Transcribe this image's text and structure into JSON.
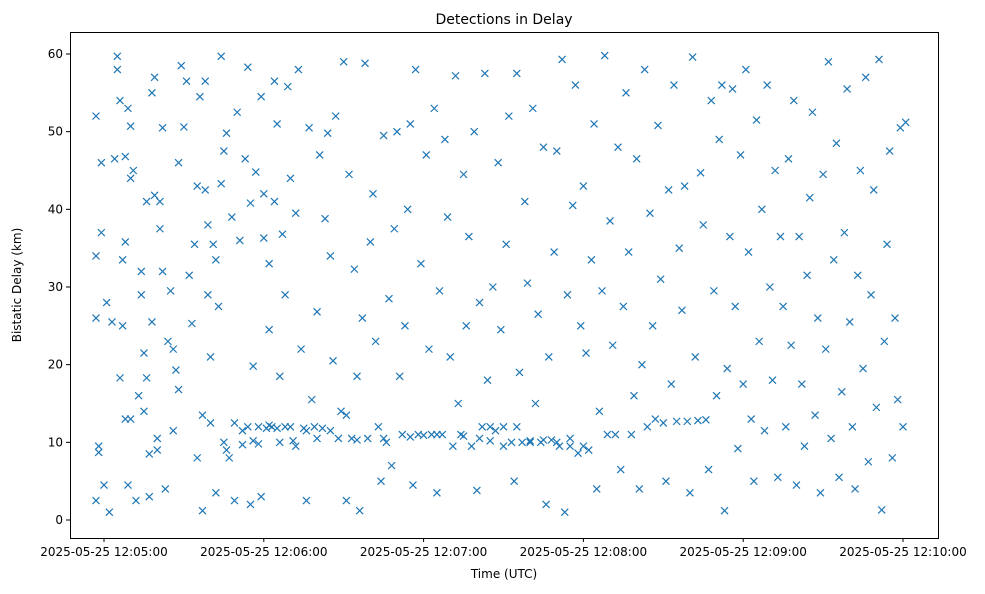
{
  "chart_data": {
    "type": "scatter",
    "title": "Detections in Delay",
    "xlabel": "Time (UTC)",
    "ylabel": "Bistatic Delay (km)",
    "x_units": "seconds after 2025-05-25 12:05:00",
    "xlim": [
      -8,
      310
    ],
    "ylim": [
      -2.5,
      62.5
    ],
    "grid": false,
    "marker": "x",
    "color": "#1f77b4",
    "x_ticks": [
      0,
      60,
      120,
      180,
      240,
      300
    ],
    "x_tick_labels": [
      "2025-05-25 12:05:00",
      "2025-05-25 12:06:00",
      "2025-05-25 12:07:00",
      "2025-05-25 12:08:00",
      "2025-05-25 12:09:00",
      "2025-05-25 12:10:00"
    ],
    "y_ticks": [
      0,
      10,
      20,
      30,
      40,
      50,
      60
    ],
    "y_tick_labels": [
      "0",
      "10",
      "20",
      "30",
      "40",
      "50",
      "60"
    ],
    "points": [
      [
        -3,
        52
      ],
      [
        -3,
        34
      ],
      [
        -3,
        26
      ],
      [
        -3,
        2.5
      ],
      [
        -2,
        9.5
      ],
      [
        -2,
        8.7
      ],
      [
        -1,
        46
      ],
      [
        -1,
        37
      ],
      [
        0,
        4.5
      ],
      [
        1,
        28
      ],
      [
        2,
        1
      ],
      [
        3,
        25.5
      ],
      [
        4,
        46.5
      ],
      [
        5,
        59.7
      ],
      [
        5,
        58
      ],
      [
        6,
        54
      ],
      [
        6,
        18.3
      ],
      [
        7,
        25
      ],
      [
        7,
        33.5
      ],
      [
        8,
        46.8
      ],
      [
        8,
        35.8
      ],
      [
        8,
        13
      ],
      [
        9,
        53
      ],
      [
        9,
        4.5
      ],
      [
        10,
        50.7
      ],
      [
        10,
        44
      ],
      [
        10,
        13
      ],
      [
        11,
        45
      ],
      [
        12,
        2.5
      ],
      [
        13,
        16
      ],
      [
        14,
        29
      ],
      [
        14,
        32
      ],
      [
        15,
        21.5
      ],
      [
        15,
        14
      ],
      [
        16,
        41
      ],
      [
        16,
        18.3
      ],
      [
        17,
        8.5
      ],
      [
        17,
        3
      ],
      [
        18,
        55
      ],
      [
        18,
        25.5
      ],
      [
        19,
        57
      ],
      [
        19,
        41.8
      ],
      [
        20,
        10.5
      ],
      [
        20,
        9
      ],
      [
        21,
        37.5
      ],
      [
        21,
        41
      ],
      [
        22,
        50.5
      ],
      [
        22,
        32
      ],
      [
        23,
        4
      ],
      [
        24,
        23
      ],
      [
        25,
        29.5
      ],
      [
        26,
        11.5
      ],
      [
        26,
        22
      ],
      [
        27,
        19.3
      ],
      [
        28,
        46
      ],
      [
        28,
        16.8
      ],
      [
        29,
        58.5
      ],
      [
        30,
        50.6
      ],
      [
        31,
        56.5
      ],
      [
        32,
        31.5
      ],
      [
        33,
        25.3
      ],
      [
        34,
        35.5
      ],
      [
        35,
        43
      ],
      [
        35,
        8
      ],
      [
        36,
        54.5
      ],
      [
        37,
        13.5
      ],
      [
        37,
        1.2
      ],
      [
        38,
        56.5
      ],
      [
        38,
        42.5
      ],
      [
        39,
        38
      ],
      [
        39,
        29
      ],
      [
        40,
        12.5
      ],
      [
        40,
        21
      ],
      [
        41,
        35.5
      ],
      [
        42,
        33.5
      ],
      [
        42,
        3.5
      ],
      [
        43,
        27.5
      ],
      [
        44,
        43.3
      ],
      [
        44,
        59.7
      ],
      [
        45,
        47.5
      ],
      [
        45,
        10
      ],
      [
        46,
        49.8
      ],
      [
        46,
        9
      ],
      [
        47,
        8
      ],
      [
        48,
        39
      ],
      [
        49,
        12.5
      ],
      [
        49,
        2.5
      ],
      [
        50,
        52.5
      ],
      [
        51,
        36
      ],
      [
        52,
        9.7
      ],
      [
        53,
        46.5
      ],
      [
        54,
        58.3
      ],
      [
        55,
        2
      ],
      [
        55,
        40.8
      ],
      [
        56,
        19.8
      ],
      [
        57,
        44.8
      ],
      [
        58,
        12
      ],
      [
        59,
        54.5
      ],
      [
        59,
        3
      ],
      [
        60,
        42
      ],
      [
        60,
        36.3
      ],
      [
        61,
        11.8
      ],
      [
        62,
        33
      ],
      [
        62,
        24.5
      ],
      [
        63,
        12
      ],
      [
        64,
        41
      ],
      [
        64,
        56.5
      ],
      [
        65,
        51
      ],
      [
        66,
        10
      ],
      [
        66,
        18.5
      ],
      [
        67,
        36.8
      ],
      [
        68,
        12
      ],
      [
        68,
        29
      ],
      [
        69,
        55.8
      ],
      [
        70,
        44
      ],
      [
        71,
        10.2
      ],
      [
        72,
        39.5
      ],
      [
        73,
        58
      ],
      [
        74,
        22
      ],
      [
        75,
        11.8
      ],
      [
        76,
        2.5
      ],
      [
        77,
        50.5
      ],
      [
        78,
        15.5
      ],
      [
        79,
        12
      ],
      [
        80,
        26.8
      ],
      [
        81,
        47
      ],
      [
        82,
        11.8
      ],
      [
        83,
        38.8
      ],
      [
        84,
        49.8
      ],
      [
        85,
        34
      ],
      [
        86,
        20.5
      ],
      [
        87,
        52
      ],
      [
        88,
        10.5
      ],
      [
        89,
        14
      ],
      [
        90,
        59
      ],
      [
        91,
        13.5
      ],
      [
        91,
        2.5
      ],
      [
        92,
        44.5
      ],
      [
        93,
        10.5
      ],
      [
        94,
        32.3
      ],
      [
        95,
        18.5
      ],
      [
        96,
        1.2
      ],
      [
        97,
        26
      ],
      [
        98,
        58.8
      ],
      [
        99,
        10.5
      ],
      [
        100,
        35.8
      ],
      [
        101,
        42
      ],
      [
        102,
        23
      ],
      [
        103,
        12
      ],
      [
        104,
        5
      ],
      [
        105,
        49.5
      ],
      [
        106,
        10
      ],
      [
        107,
        28.5
      ],
      [
        108,
        7
      ],
      [
        109,
        37.5
      ],
      [
        110,
        50
      ],
      [
        111,
        18.5
      ],
      [
        112,
        11
      ],
      [
        113,
        25
      ],
      [
        114,
        40
      ],
      [
        115,
        51
      ],
      [
        116,
        4.5
      ],
      [
        117,
        58
      ],
      [
        118,
        11
      ],
      [
        119,
        33
      ],
      [
        120,
        10.9
      ],
      [
        121,
        47
      ],
      [
        122,
        22
      ],
      [
        123,
        11
      ],
      [
        124,
        53
      ],
      [
        125,
        3.5
      ],
      [
        126,
        29.5
      ],
      [
        127,
        11
      ],
      [
        128,
        49
      ],
      [
        129,
        39
      ],
      [
        130,
        21
      ],
      [
        131,
        9.5
      ],
      [
        132,
        57.2
      ],
      [
        133,
        15
      ],
      [
        134,
        11
      ],
      [
        135,
        44.5
      ],
      [
        136,
        25
      ],
      [
        137,
        36.5
      ],
      [
        138,
        9.5
      ],
      [
        139,
        50
      ],
      [
        140,
        3.8
      ],
      [
        141,
        28
      ],
      [
        142,
        12
      ],
      [
        143,
        57.5
      ],
      [
        144,
        18
      ],
      [
        145,
        10.2
      ],
      [
        146,
        30
      ],
      [
        147,
        11.5
      ],
      [
        148,
        46
      ],
      [
        149,
        24.5
      ],
      [
        150,
        12
      ],
      [
        151,
        35.5
      ],
      [
        152,
        52
      ],
      [
        153,
        10
      ],
      [
        154,
        5
      ],
      [
        155,
        57.5
      ],
      [
        156,
        19
      ],
      [
        157,
        10
      ],
      [
        158,
        41
      ],
      [
        159,
        30.5
      ],
      [
        160,
        10
      ],
      [
        161,
        53
      ],
      [
        162,
        15
      ],
      [
        163,
        26.5
      ],
      [
        164,
        10
      ],
      [
        165,
        48
      ],
      [
        166,
        2
      ],
      [
        167,
        21
      ],
      [
        168,
        10.3
      ],
      [
        169,
        34.5
      ],
      [
        170,
        47.5
      ],
      [
        171,
        9.5
      ],
      [
        172,
        59.3
      ],
      [
        173,
        1
      ],
      [
        174,
        29
      ],
      [
        175,
        9.5
      ],
      [
        176,
        40.5
      ],
      [
        177,
        56
      ],
      [
        178,
        8.6
      ],
      [
        179,
        25
      ],
      [
        180,
        43
      ],
      [
        181,
        21.5
      ],
      [
        182,
        9
      ],
      [
        183,
        33.5
      ],
      [
        184,
        51
      ],
      [
        185,
        4
      ],
      [
        186,
        14
      ],
      [
        187,
        29.5
      ],
      [
        188,
        59.8
      ],
      [
        189,
        11
      ],
      [
        190,
        38.5
      ],
      [
        191,
        22.5
      ],
      [
        192,
        11
      ],
      [
        193,
        48
      ],
      [
        194,
        6.5
      ],
      [
        195,
        27.5
      ],
      [
        196,
        55
      ],
      [
        197,
        34.5
      ],
      [
        198,
        11
      ],
      [
        199,
        16
      ],
      [
        200,
        46.5
      ],
      [
        201,
        4
      ],
      [
        202,
        20
      ],
      [
        203,
        58
      ],
      [
        204,
        12
      ],
      [
        205,
        39.5
      ],
      [
        206,
        25
      ],
      [
        207,
        13
      ],
      [
        208,
        50.8
      ],
      [
        209,
        31
      ],
      [
        210,
        12.5
      ],
      [
        211,
        5
      ],
      [
        212,
        42.5
      ],
      [
        213,
        17.5
      ],
      [
        214,
        56
      ],
      [
        215,
        12.7
      ],
      [
        216,
        35
      ],
      [
        217,
        27
      ],
      [
        218,
        43
      ],
      [
        219,
        12.7
      ],
      [
        220,
        3.5
      ],
      [
        221,
        59.6
      ],
      [
        222,
        21
      ],
      [
        223,
        12.8
      ],
      [
        224,
        44.7
      ],
      [
        225,
        38
      ],
      [
        226,
        12.9
      ],
      [
        227,
        6.5
      ],
      [
        228,
        54
      ],
      [
        229,
        29.5
      ],
      [
        230,
        16
      ],
      [
        231,
        49
      ],
      [
        232,
        56
      ],
      [
        233,
        1.2
      ],
      [
        234,
        19.5
      ],
      [
        235,
        36.5
      ],
      [
        236,
        55.5
      ],
      [
        237,
        27.5
      ],
      [
        238,
        9.2
      ],
      [
        239,
        47
      ],
      [
        240,
        17.5
      ],
      [
        241,
        58
      ],
      [
        242,
        34.5
      ],
      [
        243,
        13
      ],
      [
        244,
        5
      ],
      [
        245,
        51.5
      ],
      [
        246,
        23
      ],
      [
        247,
        40
      ],
      [
        248,
        11.5
      ],
      [
        249,
        56
      ],
      [
        250,
        30
      ],
      [
        251,
        18
      ],
      [
        252,
        45
      ],
      [
        253,
        5.5
      ],
      [
        254,
        36.5
      ],
      [
        255,
        27.5
      ],
      [
        256,
        12
      ],
      [
        257,
        46.5
      ],
      [
        258,
        22.5
      ],
      [
        259,
        54
      ],
      [
        260,
        4.5
      ],
      [
        261,
        36.5
      ],
      [
        262,
        17.5
      ],
      [
        263,
        9.5
      ],
      [
        264,
        31.5
      ],
      [
        265,
        41.5
      ],
      [
        266,
        52.5
      ],
      [
        267,
        13.5
      ],
      [
        268,
        26
      ],
      [
        269,
        3.5
      ],
      [
        270,
        44.5
      ],
      [
        271,
        22
      ],
      [
        272,
        59
      ],
      [
        273,
        10.5
      ],
      [
        274,
        33.5
      ],
      [
        275,
        48.5
      ],
      [
        276,
        5.5
      ],
      [
        277,
        16.5
      ],
      [
        278,
        37
      ],
      [
        279,
        55.5
      ],
      [
        280,
        25.5
      ],
      [
        281,
        12
      ],
      [
        282,
        4
      ],
      [
        283,
        31.5
      ],
      [
        284,
        45
      ],
      [
        285,
        19.5
      ],
      [
        286,
        57
      ],
      [
        287,
        7.5
      ],
      [
        288,
        29
      ],
      [
        289,
        42.5
      ],
      [
        290,
        14.5
      ],
      [
        291,
        59.3
      ],
      [
        292,
        1.3
      ],
      [
        293,
        23
      ],
      [
        294,
        35.5
      ],
      [
        295,
        47.5
      ],
      [
        296,
        8
      ],
      [
        297,
        26
      ],
      [
        298,
        15.5
      ],
      [
        299,
        50.5
      ],
      [
        300,
        12
      ],
      [
        301,
        51.2
      ],
      [
        52,
        11.5
      ],
      [
        54,
        12
      ],
      [
        56,
        10.2
      ],
      [
        58,
        9.8
      ],
      [
        62,
        12.2
      ],
      [
        65,
        11.8
      ],
      [
        70,
        12
      ],
      [
        72,
        9.5
      ],
      [
        76,
        11.5
      ],
      [
        80,
        10.5
      ],
      [
        85,
        11.5
      ],
      [
        95,
        10.3
      ],
      [
        105,
        10.5
      ],
      [
        115,
        10.7
      ],
      [
        125,
        11
      ],
      [
        135,
        10.8
      ],
      [
        141,
        10.5
      ],
      [
        145,
        12
      ],
      [
        150,
        9.5
      ],
      [
        155,
        12
      ],
      [
        160,
        10.2
      ],
      [
        165,
        10.3
      ],
      [
        170,
        10
      ],
      [
        175,
        10.5
      ],
      [
        180,
        9.5
      ]
    ]
  }
}
